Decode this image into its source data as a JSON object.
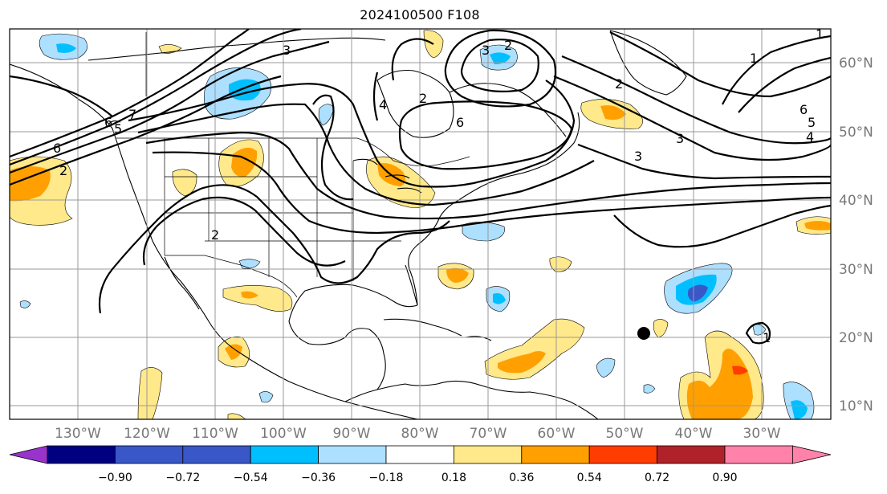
{
  "title": "2024100500 F108",
  "map": {
    "lon_labels": [
      "130°W",
      "120°W",
      "110°W",
      "100°W",
      "90°W",
      "80°W",
      "70°W",
      "60°W",
      "50°W",
      "40°W",
      "30°W"
    ],
    "lat_labels": [
      "60°N",
      "50°N",
      "40°N",
      "30°N",
      "20°N",
      "10°N"
    ],
    "contour_labels": [
      "2",
      "3",
      "4",
      "6",
      "6",
      "2",
      "1",
      "2",
      "3",
      "3",
      "6",
      "5",
      "4",
      "2",
      "1",
      "6",
      "5",
      "3",
      "2",
      "1",
      "7"
    ],
    "marker": "storm-position-dot"
  },
  "colorbar": {
    "tick_labels": [
      "−0.90",
      "−0.72",
      "−0.54",
      "−0.36",
      "−0.18",
      "0.18",
      "0.36",
      "0.54",
      "0.72",
      "0.90"
    ],
    "colors": [
      "#9933cc",
      "#000080",
      "#3a57c8",
      "#00bfff",
      "#addfff",
      "#ffffff",
      "#ffe98a",
      "#ffa000",
      "#ff3d00",
      "#b0222a",
      "#ff82aa"
    ]
  }
}
